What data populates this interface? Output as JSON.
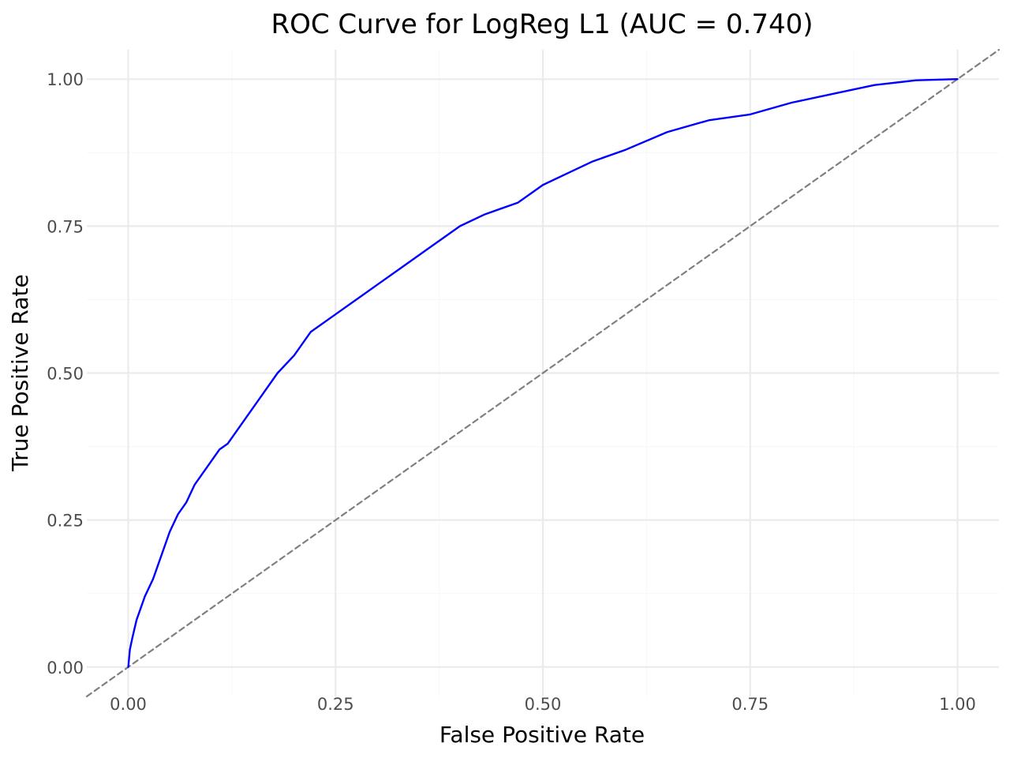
{
  "chart_data": {
    "type": "line",
    "title": "ROC Curve for LogReg L1 (AUC = 0.740)",
    "xlabel": "False Positive Rate",
    "ylabel": "True Positive Rate",
    "xlim": [
      -0.05,
      1.05
    ],
    "ylim": [
      -0.05,
      1.05
    ],
    "x_ticks": [
      0,
      0.25,
      0.5,
      0.75,
      1
    ],
    "x_tick_labels": [
      "0.00",
      "0.25",
      "0.50",
      "0.75",
      "1.00"
    ],
    "y_ticks": [
      0,
      0.25,
      0.5,
      0.75,
      1
    ],
    "y_tick_labels": [
      "0.00",
      "0.25",
      "0.50",
      "0.75",
      "1.00"
    ],
    "grid": true,
    "legend": "none",
    "series": [
      {
        "color": "#0000ff",
        "style": "solid",
        "x": [
          0,
          0.002,
          0.005,
          0.01,
          0.015,
          0.02,
          0.03,
          0.04,
          0.05,
          0.06,
          0.07,
          0.08,
          0.09,
          0.1,
          0.11,
          0.12,
          0.14,
          0.16,
          0.18,
          0.2,
          0.22,
          0.25,
          0.28,
          0.3,
          0.33,
          0.36,
          0.4,
          0.43,
          0.47,
          0.5,
          0.53,
          0.56,
          0.6,
          0.65,
          0.7,
          0.75,
          0.8,
          0.85,
          0.9,
          0.95,
          1
        ],
        "y": [
          0,
          0.03,
          0.05,
          0.08,
          0.1,
          0.12,
          0.15,
          0.19,
          0.23,
          0.26,
          0.28,
          0.31,
          0.33,
          0.35,
          0.37,
          0.38,
          0.42,
          0.46,
          0.5,
          0.53,
          0.57,
          0.6,
          0.63,
          0.65,
          0.68,
          0.71,
          0.75,
          0.77,
          0.79,
          0.82,
          0.84,
          0.86,
          0.88,
          0.91,
          0.93,
          0.94,
          0.96,
          0.975,
          0.99,
          0.998,
          1
        ]
      },
      {
        "color": "#7f7f7f",
        "style": "dashed",
        "x": [
          -0.05,
          1.05
        ],
        "y": [
          -0.05,
          1.05
        ]
      }
    ]
  }
}
